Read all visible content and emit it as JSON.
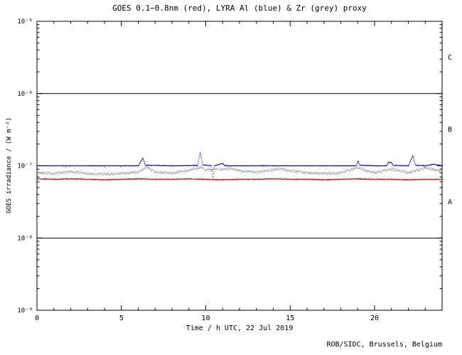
{
  "chart_data": {
    "type": "scatter",
    "title": "GOES 0.1−0.8nm (red), LYRA Al (blue) & Zr (grey) proxy",
    "xlabel": "Time / h UTC, 22 Jul 2019",
    "ylabel": "GOES irradiance / (W m⁻²)",
    "credit": "ROB/SIDC, Brussels, Belgium",
    "xlim": [
      0,
      24
    ],
    "x_major_ticks": [
      0,
      5,
      10,
      15,
      20
    ],
    "x_minor_step": 1,
    "y_scale": "log",
    "y_exp_range": [
      -9,
      -5
    ],
    "y_ticks": [
      {
        "exp": -5,
        "label": "10⁻⁵"
      },
      {
        "exp": -6,
        "label": "10⁻⁶"
      },
      {
        "exp": -7,
        "label": "10⁻⁷"
      },
      {
        "exp": -8,
        "label": "10⁻⁸"
      },
      {
        "exp": -9,
        "label": "10⁻⁹"
      }
    ],
    "hline_exps": [
      -6,
      -8
    ],
    "flux_classes": [
      {
        "label": "C",
        "exp_mid": -5.5
      },
      {
        "label": "B",
        "exp_mid": -6.5
      },
      {
        "label": "A",
        "exp_mid": -7.5
      }
    ],
    "series": [
      {
        "id": "lyra-zr",
        "name": "LYRA Zr proxy",
        "color": "#a0a0a0",
        "jitter": 0.04,
        "outlier_rate": 0.02,
        "outlier_mag": 0.12,
        "x": [
          0,
          1,
          2,
          3,
          4,
          5,
          6,
          6.5,
          7,
          8,
          9,
          9.7,
          10,
          11,
          11.5,
          12,
          13,
          14,
          14.5,
          15,
          16,
          17,
          18,
          19,
          19.5,
          20,
          21,
          21.5,
          22,
          23,
          23.5,
          24
        ],
        "y": [
          8e-08,
          7.8e-08,
          8.3e-08,
          7.8e-08,
          7.6e-08,
          7.8e-08,
          8.2e-08,
          9.6e-08,
          8.2e-08,
          8e-08,
          8.6e-08,
          9.6e-08,
          8.8e-08,
          9e-08,
          9.2e-08,
          8.5e-08,
          8.2e-08,
          8.8e-08,
          9e-08,
          8.5e-08,
          8e-08,
          7.8e-08,
          8e-08,
          9.4e-08,
          8.5e-08,
          8e-08,
          9e-08,
          8.5e-08,
          8e-08,
          9.3e-08,
          8.8e-08,
          8.4e-08
        ]
      },
      {
        "id": "goes",
        "name": "GOES 0.1-0.8nm",
        "color": "#cc0000",
        "jitter": 0.012,
        "outlier_rate": 0,
        "outlier_mag": 0,
        "x": [
          0,
          1,
          2,
          3,
          4,
          5,
          6,
          7,
          8,
          9,
          10,
          11,
          12,
          13,
          14,
          15,
          16,
          17,
          18,
          19,
          20,
          21,
          22,
          23,
          24
        ],
        "y": [
          6.6e-08,
          6.5e-08,
          6.6e-08,
          6.5e-08,
          6.4e-08,
          6.5e-08,
          6.6e-08,
          6.5e-08,
          6.5e-08,
          6.6e-08,
          6.5e-08,
          6.4e-08,
          6.5e-08,
          6.5e-08,
          6.6e-08,
          6.5e-08,
          6.5e-08,
          6.4e-08,
          6.5e-08,
          6.6e-08,
          6.5e-08,
          6.5e-08,
          6.4e-08,
          6.5e-08,
          6.5e-08
        ]
      },
      {
        "id": "lyra-al",
        "name": "LYRA Al proxy",
        "color": "#0000bb",
        "jitter": 0.008,
        "outlier_rate": 0.003,
        "outlier_mag": 0.05,
        "x": [
          0,
          2,
          4,
          6,
          6.25,
          6.4,
          8,
          9.5,
          9.65,
          9.8,
          10.3,
          10.4,
          10.5,
          11,
          11.1,
          12,
          13,
          14,
          16,
          18,
          18.9,
          19.0,
          19.1,
          20,
          20.7,
          20.8,
          21,
          21.1,
          22,
          22.25,
          22.4,
          23,
          23.5,
          24
        ],
        "y": [
          1e-07,
          1e-07,
          1e-07,
          1e-07,
          1.28e-07,
          1.02e-07,
          1e-07,
          1.01e-07,
          1.52e-07,
          1.03e-07,
          1e-07,
          6.6e-08,
          1e-07,
          1.08e-07,
          1e-07,
          1e-07,
          1e-07,
          1e-07,
          1e-07,
          1e-07,
          1e-07,
          1.17e-07,
          1.02e-07,
          1e-07,
          1e-07,
          1.12e-07,
          1.1e-07,
          1.01e-07,
          1e-07,
          1.38e-07,
          1.02e-07,
          1e-07,
          1.05e-07,
          1e-07
        ]
      }
    ]
  }
}
